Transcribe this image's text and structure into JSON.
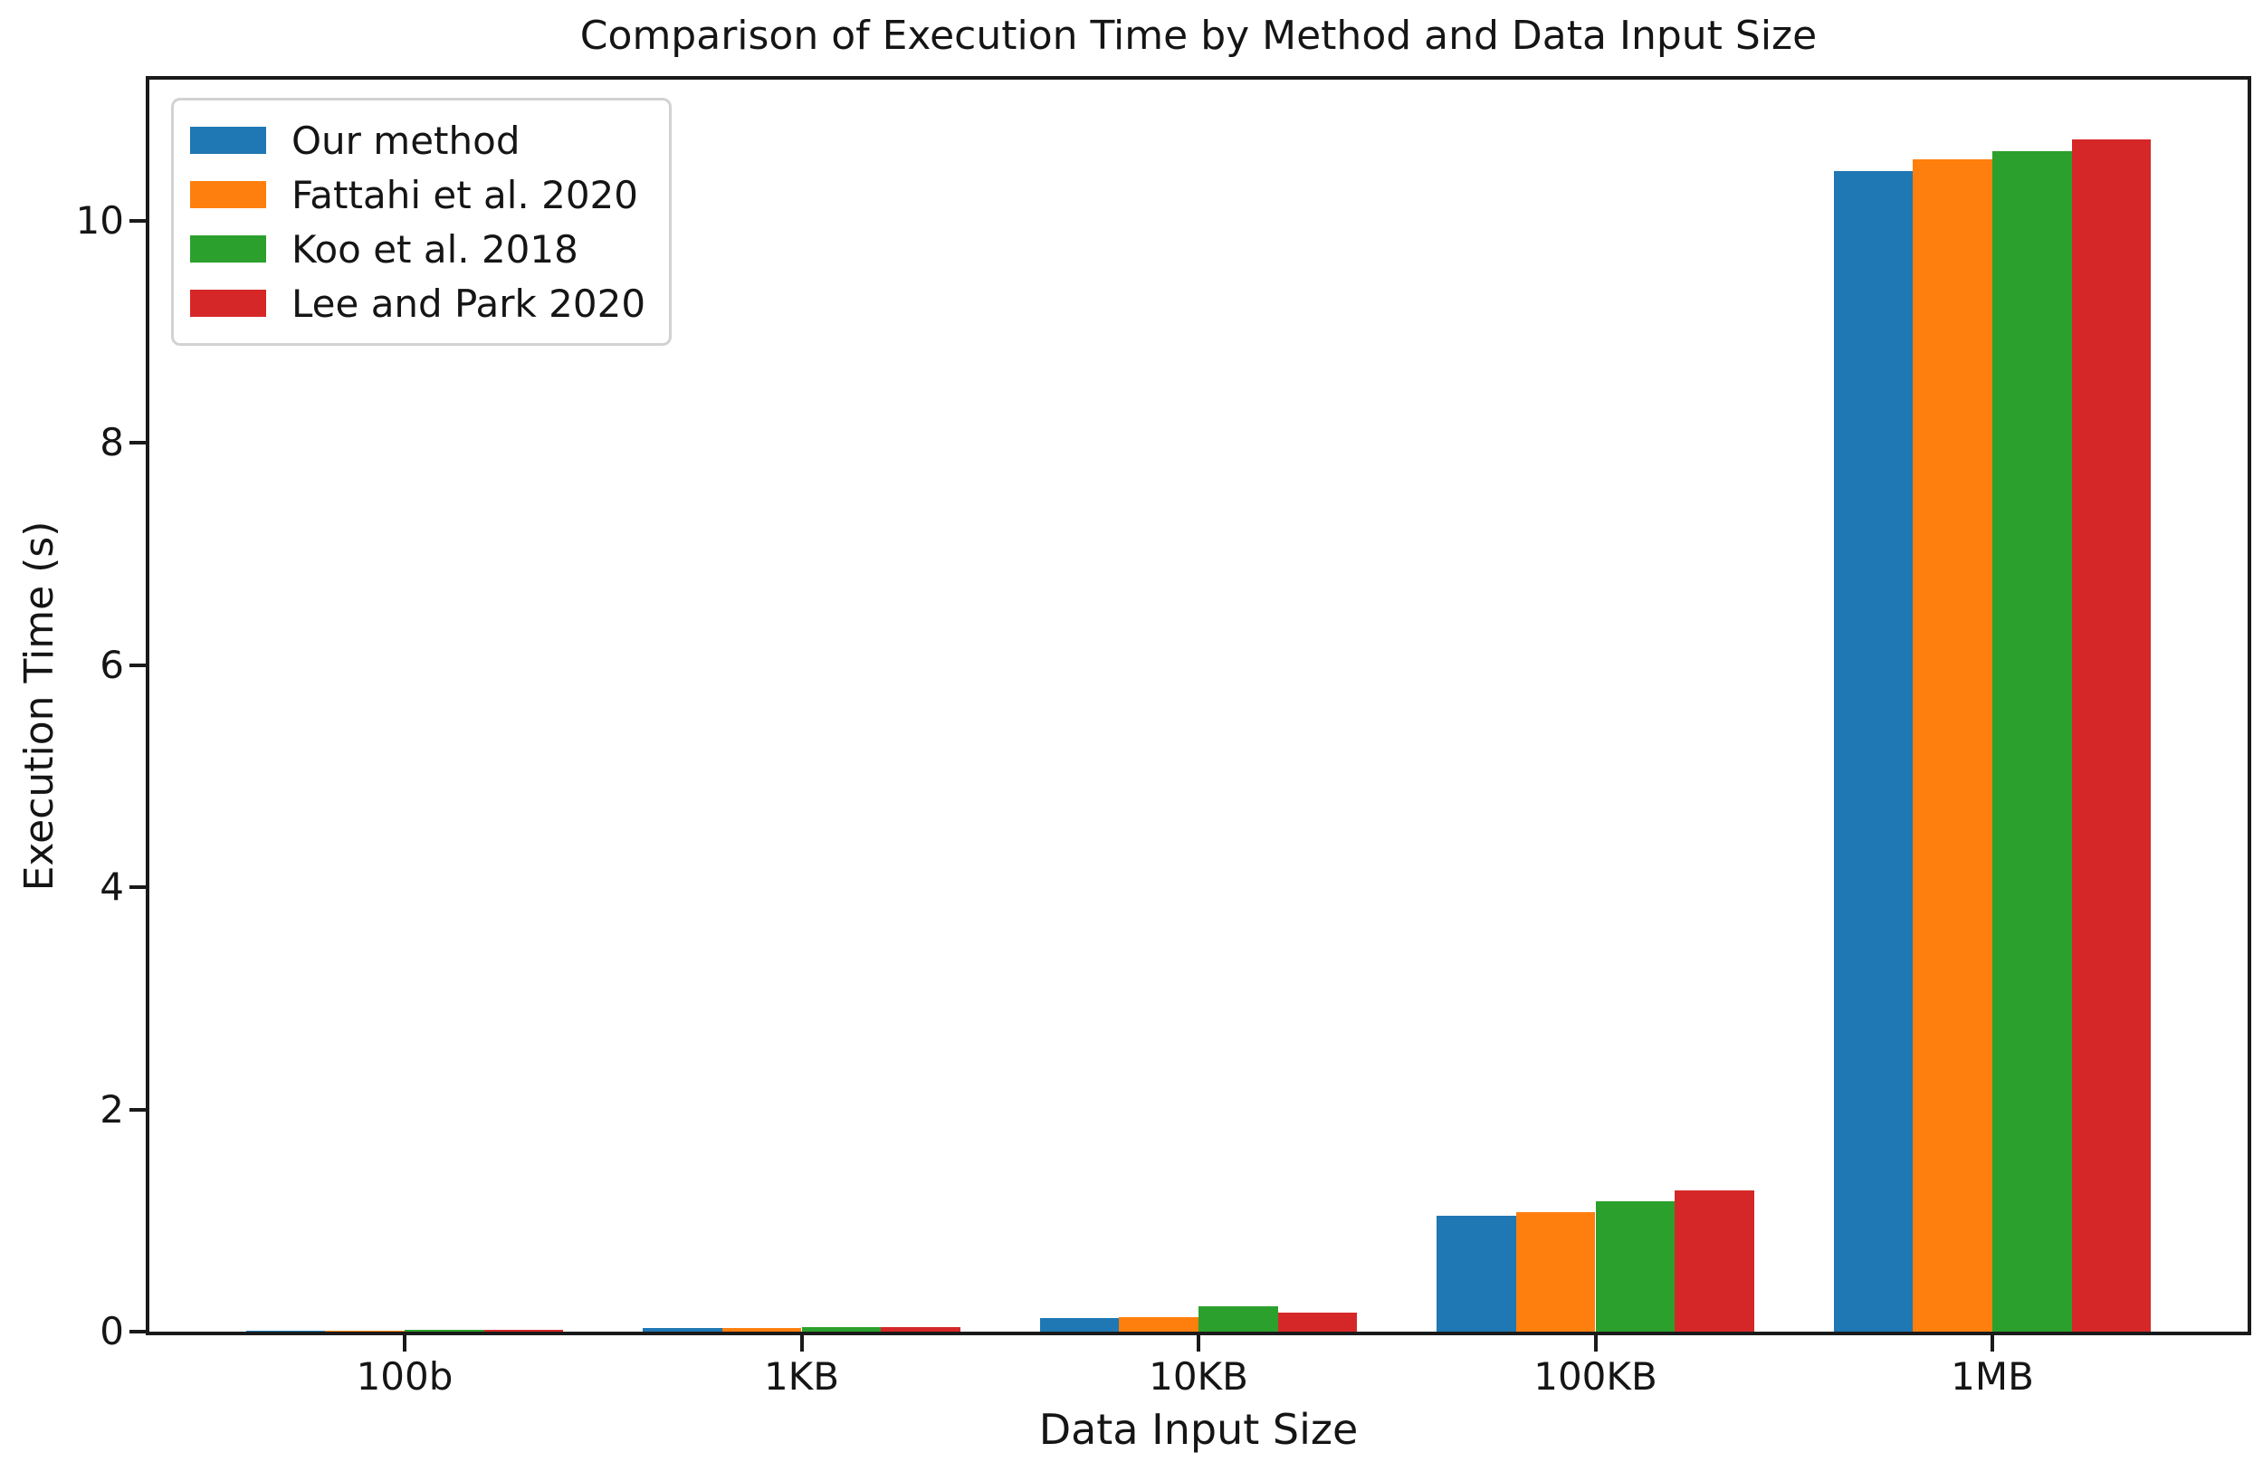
{
  "chart_data": {
    "type": "bar",
    "title": "Comparison of Execution Time by Method and Data Input Size",
    "xlabel": "Data Input Size",
    "ylabel": "Execution Time (s)",
    "categories": [
      "100b",
      "1KB",
      "10KB",
      "100KB",
      "1MB"
    ],
    "series": [
      {
        "name": "Our method",
        "color": "#1f77b4",
        "values": [
          0.01,
          0.03,
          0.12,
          1.04,
          10.45
        ]
      },
      {
        "name": "Fattahi et al. 2020",
        "color": "#ff7f0e",
        "values": [
          0.01,
          0.03,
          0.13,
          1.08,
          10.55
        ]
      },
      {
        "name": "Koo et al. 2018",
        "color": "#2ca02c",
        "values": [
          0.02,
          0.04,
          0.23,
          1.17,
          10.63
        ]
      },
      {
        "name": "Lee and Park 2020",
        "color": "#d62728",
        "values": [
          0.02,
          0.04,
          0.17,
          1.27,
          10.73
        ]
      }
    ],
    "ylim": [
      0,
      11.27
    ],
    "yticks": [
      0,
      2,
      4,
      6,
      8,
      10
    ],
    "grid": false,
    "legend_position": "upper-left",
    "bar_group_width_fraction": 0.8,
    "background_color": "#ffffff",
    "spine_color": "#1a1a1a"
  }
}
